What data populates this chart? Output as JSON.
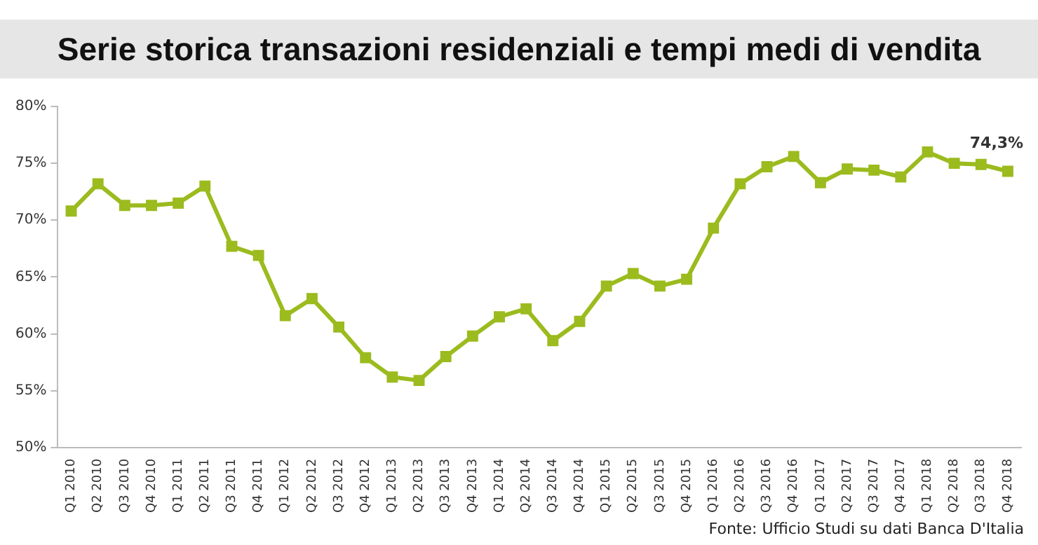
{
  "chart_data": {
    "type": "line",
    "title": "Serie storica transazioni residenziali e tempi medi di vendita",
    "categories": [
      "Q1 2010",
      "Q2 2010",
      "Q3 2010",
      "Q4 2010",
      "Q1 2011",
      "Q2 2011",
      "Q3 2011",
      "Q4 2011",
      "Q1 2012",
      "Q2 2012",
      "Q3 2012",
      "Q4 2012",
      "Q1 2013",
      "Q2 2013",
      "Q3 2013",
      "Q4 2013",
      "Q1 2014",
      "Q2 2014",
      "Q3 2014",
      "Q4 2014",
      "Q1 2015",
      "Q2 2015",
      "Q3 2015",
      "Q4 2015",
      "Q1 2016",
      "Q2 2016",
      "Q3 2016",
      "Q4 2016",
      "Q1 2017",
      "Q2 2017",
      "Q3 2017",
      "Q4 2017",
      "Q1 2018",
      "Q2 2018",
      "Q3 2018",
      "Q4 2018"
    ],
    "series": [
      {
        "color": "#9bbb1e",
        "values": [
          70.8,
          73.2,
          71.3,
          71.3,
          71.5,
          73.0,
          67.7,
          66.9,
          61.6,
          63.1,
          60.6,
          57.9,
          56.2,
          55.9,
          58.0,
          59.8,
          61.5,
          62.2,
          59.4,
          61.1,
          64.2,
          65.3,
          64.2,
          64.8,
          69.3,
          73.2,
          74.7,
          75.6,
          73.3,
          74.5,
          74.4,
          73.8,
          76.0,
          75.0,
          74.9,
          74.3
        ],
        "value_labels": [
          null,
          null,
          null,
          null,
          null,
          null,
          null,
          null,
          null,
          null,
          null,
          null,
          null,
          null,
          null,
          null,
          null,
          null,
          null,
          null,
          null,
          null,
          null,
          null,
          null,
          null,
          null,
          null,
          null,
          null,
          null,
          null,
          null,
          null,
          null,
          "74,3%"
        ]
      }
    ],
    "ylim": [
      50,
      80
    ],
    "yticks": [
      {
        "value": 50,
        "label": "50%"
      },
      {
        "value": 55,
        "label": "55%"
      },
      {
        "value": 60,
        "label": "60%"
      },
      {
        "value": 65,
        "label": "65%"
      },
      {
        "value": 70,
        "label": "70%"
      },
      {
        "value": 75,
        "label": "75%"
      },
      {
        "value": 80,
        "label": "80%"
      }
    ],
    "grid": false,
    "legend": false,
    "marker": "square",
    "line_style": "solid",
    "annotations": [
      "Fonte: Ufficio Studi su dati Banca D'Italia"
    ]
  }
}
